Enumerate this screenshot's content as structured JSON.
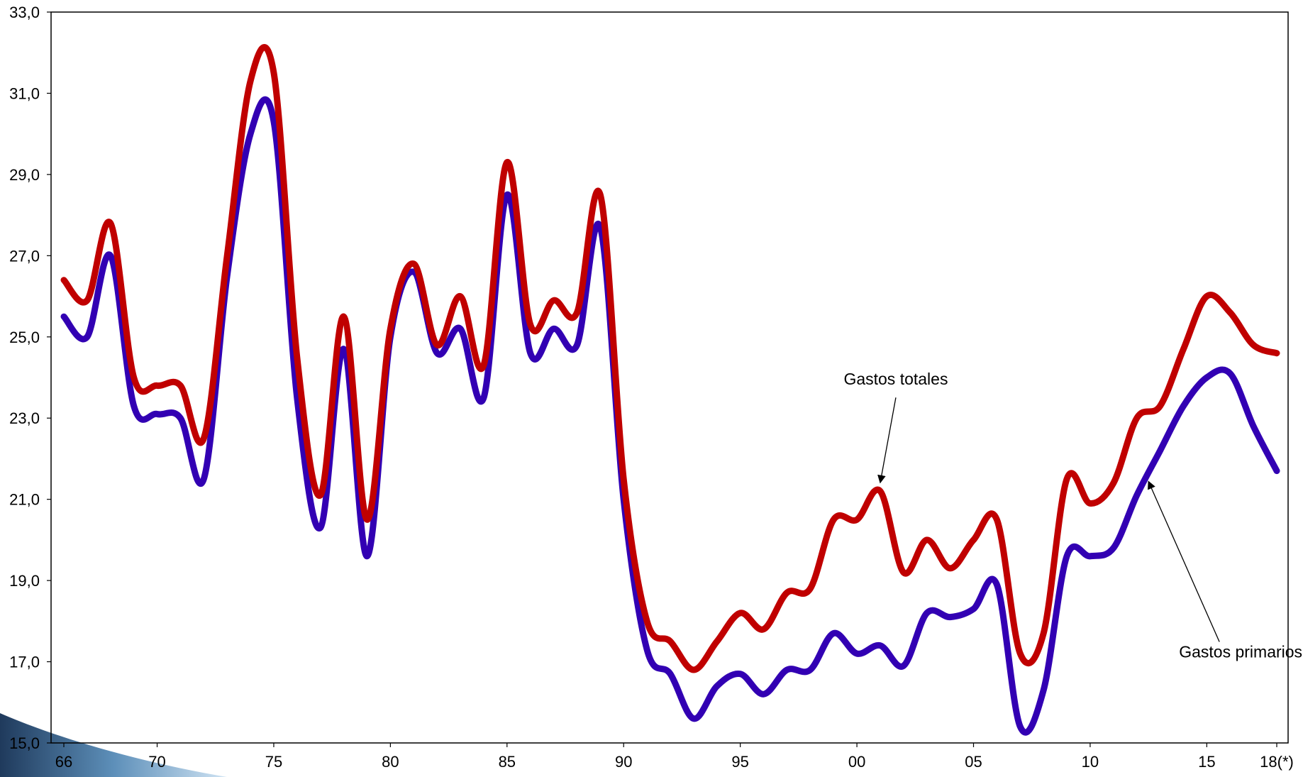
{
  "chart_data": {
    "type": "line",
    "title": "",
    "xlabel": "",
    "ylabel": "",
    "ylim": [
      15.0,
      33.0
    ],
    "xlim": [
      1966,
      2018
    ],
    "y_ticks": [
      {
        "value": 15.0,
        "label": "15,0"
      },
      {
        "value": 17.0,
        "label": "17,0"
      },
      {
        "value": 19.0,
        "label": "19,0"
      },
      {
        "value": 21.0,
        "label": "21,0"
      },
      {
        "value": 23.0,
        "label": "23,0"
      },
      {
        "value": 25.0,
        "label": "25,0"
      },
      {
        "value": 27.0,
        "label": "27,0"
      },
      {
        "value": 29.0,
        "label": "29,0"
      },
      {
        "value": 31.0,
        "label": "31,0"
      },
      {
        "value": 33.0,
        "label": "33,0"
      }
    ],
    "x_ticks": [
      {
        "value": 1966,
        "label": "66"
      },
      {
        "value": 1970,
        "label": "70"
      },
      {
        "value": 1975,
        "label": "75"
      },
      {
        "value": 1980,
        "label": "80"
      },
      {
        "value": 1985,
        "label": "85"
      },
      {
        "value": 1990,
        "label": "90"
      },
      {
        "value": 1995,
        "label": "95"
      },
      {
        "value": 2000,
        "label": "00"
      },
      {
        "value": 2005,
        "label": "05"
      },
      {
        "value": 2010,
        "label": "10"
      },
      {
        "value": 2015,
        "label": "15"
      },
      {
        "value": 2018,
        "label": "18(*)"
      }
    ],
    "grid": false,
    "legend": "none",
    "x": [
      1966,
      1967,
      1968,
      1969,
      1970,
      1971,
      1972,
      1973,
      1974,
      1975,
      1976,
      1977,
      1978,
      1979,
      1980,
      1981,
      1982,
      1983,
      1984,
      1985,
      1986,
      1987,
      1988,
      1989,
      1990,
      1991,
      1992,
      1993,
      1994,
      1995,
      1996,
      1997,
      1998,
      1999,
      2000,
      2001,
      2002,
      2003,
      2004,
      2005,
      2006,
      2007,
      2008,
      2009,
      2010,
      2011,
      2012,
      2013,
      2014,
      2015,
      2016,
      2017,
      2018
    ],
    "series": [
      {
        "name": "Gastos totales",
        "color": "#c00000",
        "values": [
          26.4,
          25.9,
          27.8,
          24.0,
          23.8,
          23.8,
          22.5,
          27.0,
          31.3,
          31.5,
          24.5,
          21.1,
          25.5,
          20.5,
          25.2,
          26.8,
          24.8,
          26.0,
          24.3,
          29.3,
          25.3,
          25.9,
          25.6,
          28.5,
          21.5,
          18.0,
          17.5,
          16.8,
          17.5,
          18.2,
          17.8,
          18.7,
          18.8,
          20.5,
          20.5,
          21.2,
          19.2,
          20.0,
          19.3,
          20.0,
          20.5,
          17.2,
          17.7,
          21.5,
          20.9,
          21.4,
          23.0,
          23.3,
          24.7,
          26.0,
          25.6,
          24.8,
          24.6
        ]
      },
      {
        "name": "Gastos primarios",
        "color": "#3200b3",
        "values": [
          25.5,
          25.0,
          27.0,
          23.3,
          23.1,
          23.0,
          21.5,
          26.5,
          30.0,
          30.3,
          23.5,
          20.3,
          24.7,
          19.6,
          25.0,
          26.6,
          24.6,
          25.2,
          23.5,
          28.5,
          24.6,
          25.2,
          24.8,
          27.7,
          21.0,
          17.3,
          16.7,
          15.6,
          16.4,
          16.7,
          16.2,
          16.8,
          16.8,
          17.7,
          17.2,
          17.4,
          16.9,
          18.2,
          18.1,
          18.3,
          18.9,
          15.4,
          16.3,
          19.6,
          19.6,
          19.8,
          21.1,
          22.2,
          23.3,
          24.0,
          24.1,
          22.8,
          21.7
        ]
      }
    ],
    "annotations": [
      {
        "text": "Gastos totales",
        "series": "Gastos totales",
        "x": 2001
      },
      {
        "text": "Gastos primarios",
        "series": "Gastos primarios",
        "x": 2012.5
      }
    ]
  }
}
